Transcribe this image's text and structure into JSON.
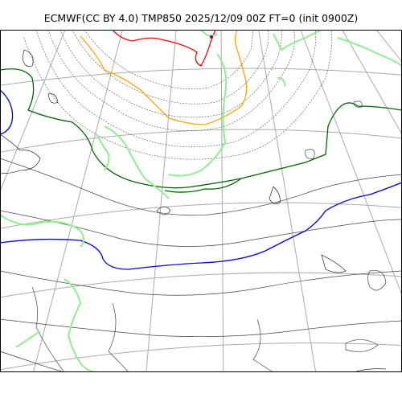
{
  "figure": {
    "title": "ECMWF(CC BY 4.0) TMP850 2025/12/09 00Z FT=0 (init 0900Z)"
  },
  "map": {
    "projection": "polar-stereographic",
    "background": "#ffffff",
    "layers": [
      {
        "name": "coastlines",
        "color": "#000000"
      },
      {
        "name": "graticule",
        "color": "#aaaaaa"
      },
      {
        "name": "isotherms",
        "color": "#555555",
        "style": "dotted"
      },
      {
        "name": "green-isotherm",
        "color": "#006400"
      },
      {
        "name": "blue-isotherm",
        "color": "#0000dd"
      },
      {
        "name": "orange-isotherm",
        "color": "#ffa500"
      },
      {
        "name": "red-isotherm",
        "color": "#ff0000"
      },
      {
        "name": "light-green-contours",
        "color": "#90ee90"
      }
    ]
  }
}
